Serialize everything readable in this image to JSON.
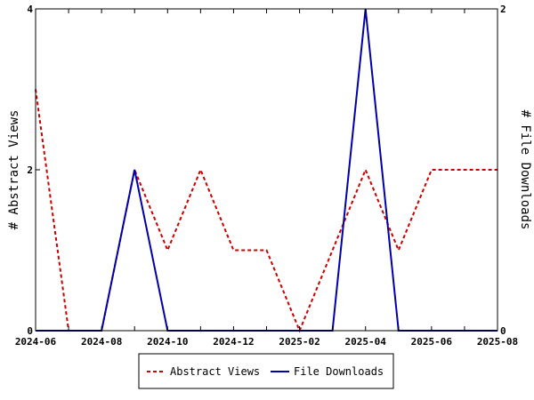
{
  "chart_data": {
    "type": "line",
    "title": "",
    "x": [
      "2024-06",
      "2024-07",
      "2024-08",
      "2024-09",
      "2024-10",
      "2024-11",
      "2024-12",
      "2025-01",
      "2025-02",
      "2025-03",
      "2025-04",
      "2025-05",
      "2025-06",
      "2025-07",
      "2025-08"
    ],
    "xticks": [
      "2024-06",
      "2024-08",
      "2024-10",
      "2024-12",
      "2025-02",
      "2025-04",
      "2025-06",
      "2025-08"
    ],
    "ylabel_left": "# Abstract Views",
    "ylabel_right": "# File Downloads",
    "ylim_left": [
      0,
      4
    ],
    "ylim_right": [
      0,
      2
    ],
    "yticks_left": [
      "0",
      "2",
      "4"
    ],
    "yticks_right": [
      "0",
      "2"
    ],
    "grid": false,
    "legend_position": "bottom-center",
    "series": [
      {
        "name": "Abstract Views",
        "axis": "left",
        "color": "#cc0000",
        "style": "dashed",
        "values": [
          3,
          0,
          0,
          2,
          1,
          2,
          1,
          1,
          0,
          1,
          2,
          1,
          2,
          2,
          2
        ]
      },
      {
        "name": "File Downloads",
        "axis": "right",
        "color": "#0000aa",
        "style": "solid",
        "values": [
          0,
          0,
          0,
          1,
          0,
          0,
          0,
          0,
          0,
          0,
          2,
          0,
          0,
          0,
          0
        ]
      }
    ]
  }
}
